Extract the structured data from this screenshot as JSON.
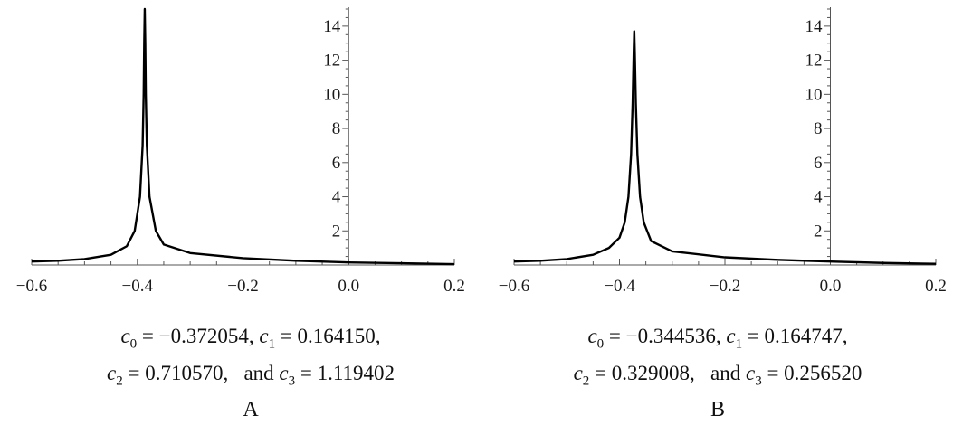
{
  "chart_data": [
    {
      "type": "line",
      "panel_label": "A",
      "xlim": [
        -0.6,
        0.2
      ],
      "ylim": [
        0,
        15
      ],
      "x_ticks": [
        "-0.6",
        "-0.4",
        "-0.2",
        "0.0",
        "0.2"
      ],
      "y_ticks": [
        "2",
        "4",
        "6",
        "8",
        "10",
        "12",
        "14"
      ],
      "peak": {
        "x": -0.386,
        "y_max": 15,
        "clipped": true
      },
      "series": [
        {
          "x": [
            -0.6,
            -0.55,
            -0.5,
            -0.45,
            -0.42,
            -0.405,
            -0.395,
            -0.39,
            -0.388,
            -0.387,
            -0.386,
            -0.385,
            -0.384,
            -0.382,
            -0.377,
            -0.365,
            -0.35,
            -0.3,
            -0.2,
            -0.1,
            0.0,
            0.1,
            0.2
          ],
          "y": [
            0.2,
            0.25,
            0.35,
            0.6,
            1.1,
            2.0,
            4.0,
            7.0,
            10.0,
            13.0,
            15.0,
            13.0,
            10.0,
            7.0,
            4.0,
            2.0,
            1.2,
            0.7,
            0.4,
            0.25,
            0.15,
            0.1,
            0.05
          ]
        }
      ],
      "parameters": {
        "line1": [
          {
            "sub": "0",
            "eq": " = −0.372054, "
          },
          {
            "sub": "1",
            "eq": " = 0.164150,"
          }
        ],
        "line2": [
          {
            "sub": "2",
            "eq": " = 0.710570,   and "
          },
          {
            "sub": "3",
            "eq": " = 1.119402"
          }
        ]
      }
    },
    {
      "type": "line",
      "panel_label": "B",
      "xlim": [
        -0.6,
        0.2
      ],
      "ylim": [
        0,
        15
      ],
      "x_ticks": [
        "-0.6",
        "-0.4",
        "-0.2",
        "0.0",
        "0.2"
      ],
      "y_ticks": [
        "2",
        "4",
        "6",
        "8",
        "10",
        "12",
        "14"
      ],
      "peak": {
        "x": -0.372,
        "y_max": 13.7,
        "clipped": false
      },
      "series": [
        {
          "x": [
            -0.6,
            -0.55,
            -0.5,
            -0.45,
            -0.42,
            -0.4,
            -0.39,
            -0.383,
            -0.378,
            -0.375,
            -0.373,
            -0.372,
            -0.371,
            -0.369,
            -0.366,
            -0.361,
            -0.354,
            -0.34,
            -0.3,
            -0.2,
            -0.1,
            0.0,
            0.1,
            0.2
          ],
          "y": [
            0.2,
            0.25,
            0.35,
            0.6,
            1.0,
            1.6,
            2.5,
            4.0,
            6.5,
            9.5,
            12.5,
            13.7,
            12.5,
            9.5,
            6.5,
            4.0,
            2.5,
            1.4,
            0.8,
            0.45,
            0.3,
            0.2,
            0.12,
            0.07
          ]
        }
      ],
      "parameters": {
        "line1": [
          {
            "sub": "0",
            "eq": " = −0.344536, "
          },
          {
            "sub": "1",
            "eq": " = 0.164747,"
          }
        ],
        "line2": [
          {
            "sub": "2",
            "eq": " = 0.329008,   and "
          },
          {
            "sub": "3",
            "eq": " = 0.256520"
          }
        ]
      }
    }
  ]
}
